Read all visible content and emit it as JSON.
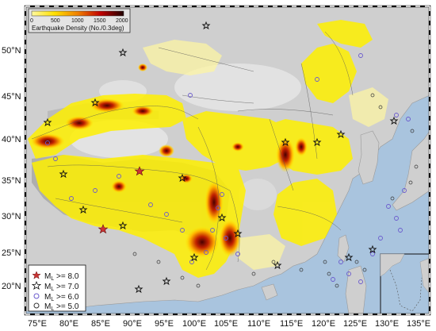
{
  "map": {
    "colorbar": {
      "title": "Earthquake Density (No./0.3deg)",
      "ticks": [
        "0",
        "500",
        "1000",
        "1500",
        "2000"
      ],
      "colors": [
        "#fff200",
        "#ffd000",
        "#f08000",
        "#c00000",
        "#200000"
      ]
    },
    "lat_labels": [
      "50°N",
      "45°N",
      "40°N",
      "35°N",
      "30°N",
      "25°N",
      "20°N"
    ],
    "lon_labels": [
      "75°E",
      "80°E",
      "85°E",
      "90°E",
      "95°E",
      "100°E",
      "105°E",
      "110°E",
      "115°E",
      "120°E",
      "125°E",
      "130°E",
      "135°E"
    ],
    "legend": [
      {
        "symbol": "star-red",
        "text": "M",
        "sub": "L",
        "rest": " >= 8.0",
        "color": "#cc2222"
      },
      {
        "symbol": "star-black",
        "text": "M",
        "sub": "L",
        "rest": " >= 7.0",
        "color": "#111111"
      },
      {
        "symbol": "circle-blue",
        "text": "M",
        "sub": "L",
        "rest": " >= 6.0",
        "color": "#6a5acd"
      },
      {
        "symbol": "circle-black",
        "text": "M",
        "sub": "L",
        "rest": " >= 5.0",
        "color": "#333333"
      }
    ],
    "colors": {
      "ocean": "#a9c4de",
      "land": "#c8c8c8",
      "highland": "#9a9a9a",
      "seismic_low": "#ffee00",
      "seismic_mid": "#ff8c00",
      "seismic_high": "#8b0000",
      "event_circle": "#6a5acd"
    }
  }
}
